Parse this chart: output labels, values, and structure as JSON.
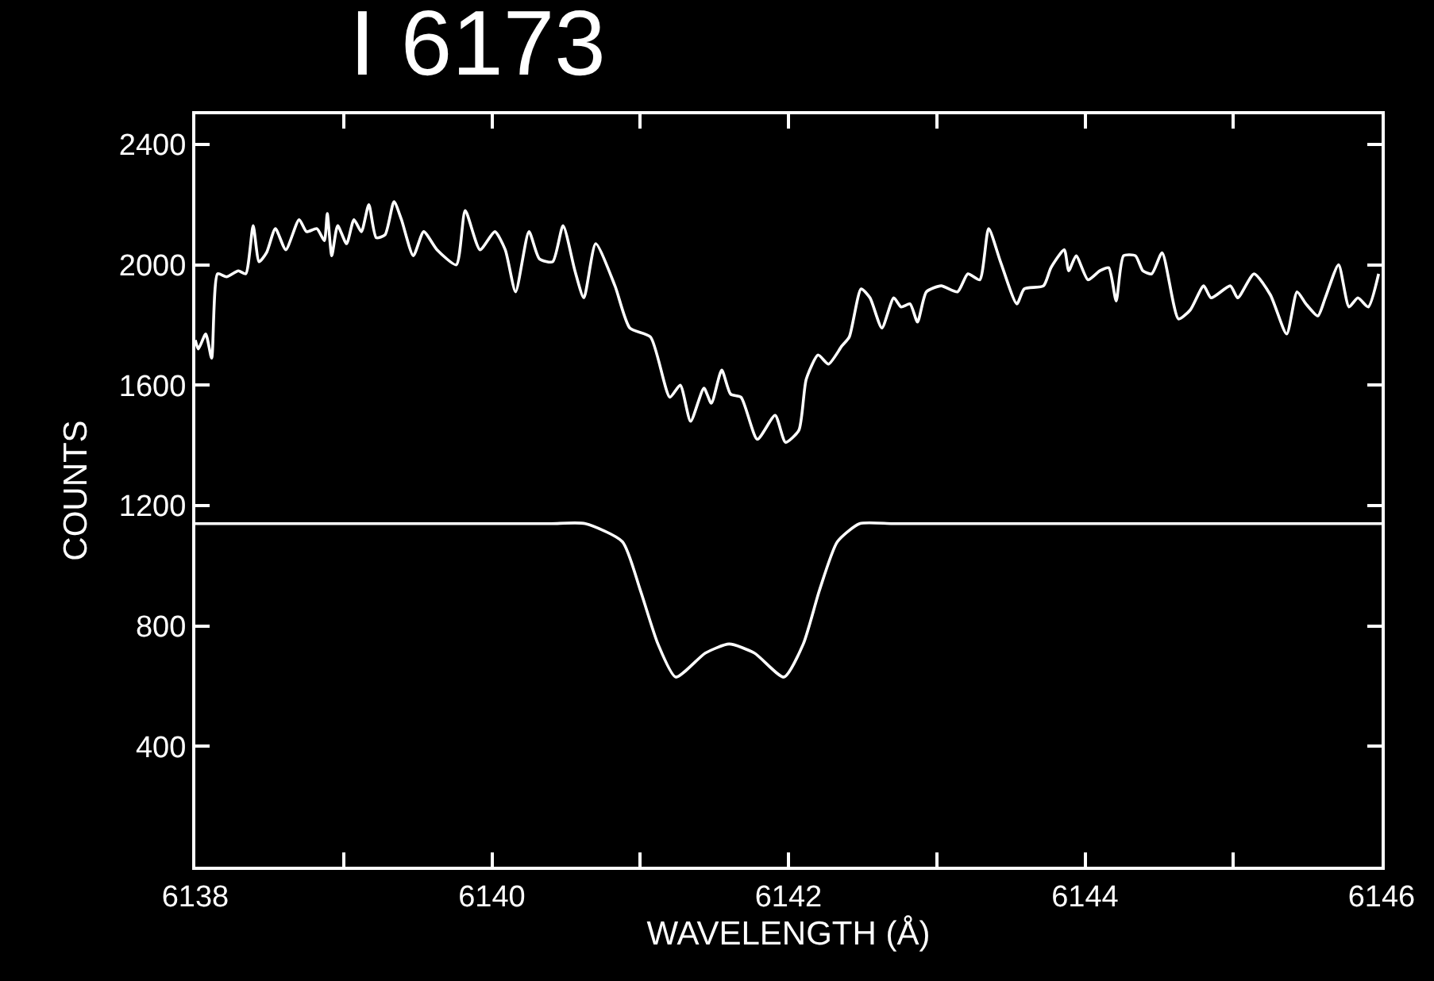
{
  "chart_data": {
    "type": "line",
    "title": "I 6173",
    "xlabel": "WAVELENGTH (Å)",
    "ylabel": "COUNTS",
    "xlim": [
      6138,
      6146
    ],
    "xticks": [
      6138,
      {
        "value": 6139,
        "label": null
      },
      6140,
      {
        "value": 6141,
        "label": null
      },
      6142,
      {
        "value": 6143,
        "label": null
      },
      6144,
      {
        "value": 6145,
        "label": null
      },
      6146
    ],
    "ylim": [
      0,
      2500
    ],
    "yticks": [
      400,
      800,
      1200,
      1600,
      2000,
      2400
    ],
    "grid": false,
    "marker": "none",
    "line_style": "solid",
    "series": [
      {
        "color": "#ffffff",
        "x": [
          6138.0,
          6138.02,
          6138.07,
          6138.11,
          6138.15,
          6138.21,
          6138.29,
          6138.34,
          6138.39,
          6138.43,
          6138.48,
          6138.54,
          6138.61,
          6138.7,
          6138.75,
          6138.82,
          6138.87,
          6138.89,
          6138.92,
          6138.96,
          6139.02,
          6139.07,
          6139.12,
          6139.17,
          6139.22,
          6139.28,
          6139.34,
          6139.39,
          6139.47,
          6139.54,
          6139.63,
          6139.76,
          6139.82,
          6139.92,
          6140.02,
          6140.09,
          6140.16,
          6140.25,
          6140.32,
          6140.41,
          6140.48,
          6140.56,
          6140.62,
          6140.7,
          6140.83,
          6140.93,
          6141.07,
          6141.2,
          6141.27,
          6141.34,
          6141.43,
          6141.48,
          6141.55,
          6141.61,
          6141.68,
          6141.79,
          6141.91,
          6141.98,
          6142.07,
          6142.12,
          6142.2,
          6142.27,
          6142.36,
          6142.41,
          6142.49,
          6142.55,
          6142.63,
          6142.71,
          6142.76,
          6142.82,
          6142.87,
          6142.93,
          6143.03,
          6143.14,
          6143.21,
          6143.29,
          6143.35,
          6143.43,
          6143.54,
          6143.59,
          6143.72,
          6143.77,
          6143.86,
          6143.89,
          6143.94,
          6144.02,
          6144.1,
          6144.16,
          6144.21,
          6144.26,
          6144.34,
          6144.39,
          6144.45,
          6144.52,
          6144.63,
          6144.71,
          6144.8,
          6144.85,
          6144.98,
          6145.03,
          6145.14,
          6145.25,
          6145.36,
          6145.43,
          6145.49,
          6145.57,
          6145.62,
          6145.71,
          6145.78,
          6145.84,
          6145.91,
          6145.98
        ],
        "values": [
          1750,
          1720,
          1770,
          1690,
          1970,
          1960,
          1980,
          1970,
          2130,
          2010,
          2040,
          2120,
          2050,
          2150,
          2110,
          2120,
          2080,
          2170,
          2030,
          2130,
          2070,
          2150,
          2110,
          2200,
          2090,
          2100,
          2210,
          2150,
          2030,
          2110,
          2050,
          2000,
          2180,
          2050,
          2110,
          2050,
          1910,
          2110,
          2020,
          2010,
          2130,
          1980,
          1890,
          2070,
          1930,
          1790,
          1760,
          1560,
          1600,
          1480,
          1590,
          1540,
          1650,
          1570,
          1560,
          1420,
          1500,
          1410,
          1450,
          1620,
          1700,
          1670,
          1730,
          1760,
          1920,
          1890,
          1790,
          1890,
          1860,
          1870,
          1810,
          1910,
          1930,
          1910,
          1970,
          1950,
          2120,
          2010,
          1870,
          1920,
          1930,
          1990,
          2050,
          1980,
          2030,
          1950,
          1980,
          1990,
          1880,
          2030,
          2030,
          1980,
          1970,
          2040,
          1820,
          1850,
          1930,
          1890,
          1930,
          1890,
          1970,
          1900,
          1770,
          1910,
          1870,
          1830,
          1890,
          2000,
          1860,
          1890,
          1860,
          1970
        ]
      },
      {
        "color": "#ffffff",
        "x": [
          6138,
          6139,
          6140,
          6140.4,
          6140.63,
          6140.88,
          6141.0,
          6141.12,
          6141.24,
          6141.44,
          6141.6,
          6141.77,
          6141.97,
          6142.1,
          6142.21,
          6142.33,
          6142.48,
          6142.7,
          6143,
          6144,
          6145,
          6146
        ],
        "values": [
          1140,
          1140,
          1140,
          1140,
          1140,
          1080,
          920,
          740,
          630,
          710,
          740,
          710,
          630,
          740,
          920,
          1080,
          1140,
          1140,
          1140,
          1140,
          1140,
          1140
        ]
      }
    ]
  }
}
